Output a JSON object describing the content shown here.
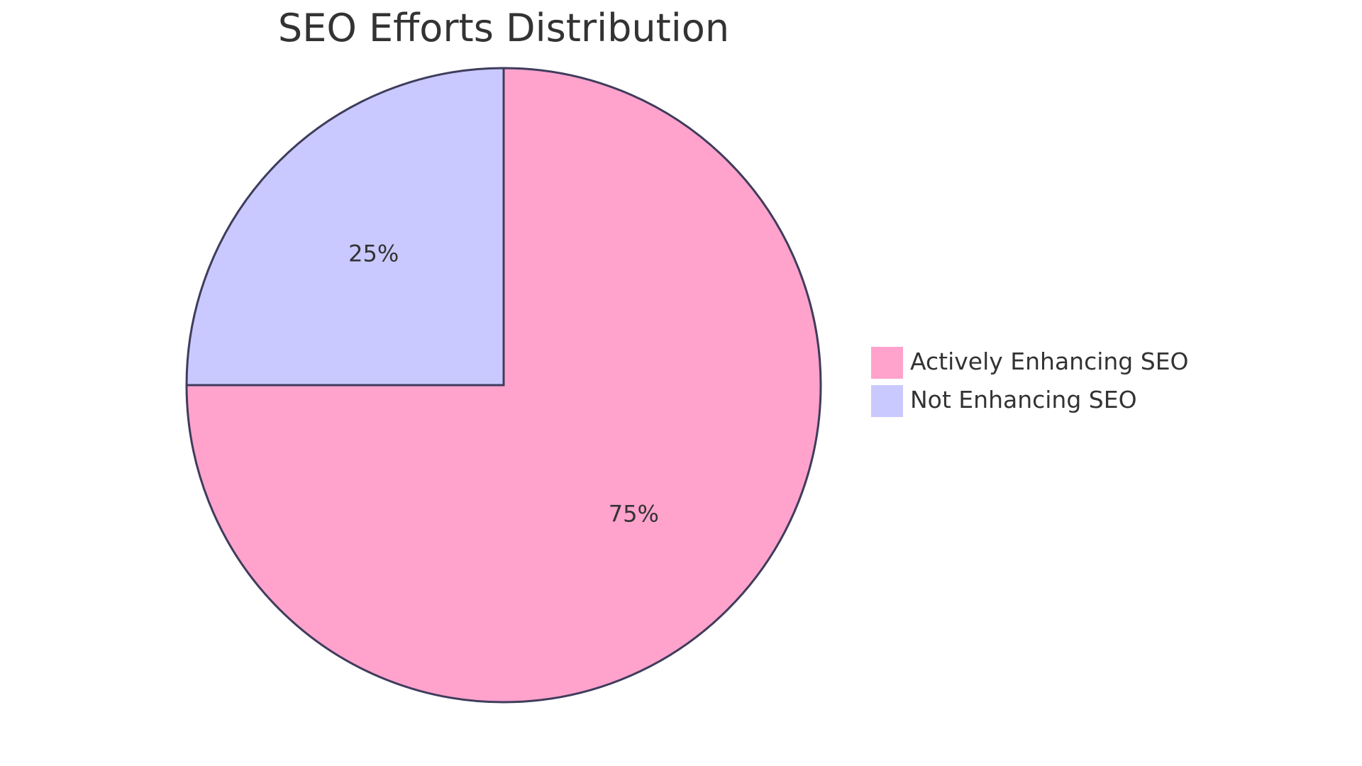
{
  "chart_data": {
    "type": "pie",
    "title": "SEO Efforts Distribution",
    "slices": [
      {
        "label": "Actively Enhancing SEO",
        "value": 75,
        "display": "75%",
        "color": "#FFA3CD"
      },
      {
        "label": "Not Enhancing SEO",
        "value": 25,
        "display": "25%",
        "color": "#C9C9FF"
      }
    ],
    "stroke_color": "#3F3C5C",
    "legend_position": "right",
    "start_angle": "top",
    "direction": "clockwise"
  }
}
